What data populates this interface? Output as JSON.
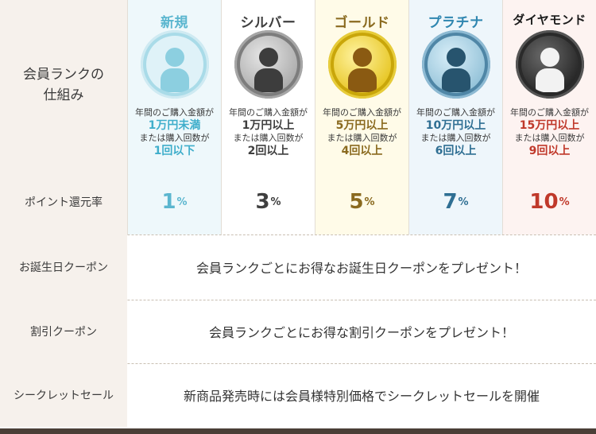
{
  "colors": {
    "label_bg": "#f6f1ec",
    "bottom_bar": "#4a3f37",
    "shinki": "#5bb6cf",
    "silver": "#3f3f3f",
    "gold": "#8a6a1f",
    "platinum": "#2f6f93",
    "diamond": "#c0392b"
  },
  "labels": {
    "rank_system": "会員ランクの\n仕組み",
    "point_rate": "ポイント還元率",
    "birthday_coupon": "お誕生日クーポン",
    "discount_coupon": "割引クーポン",
    "secret_sale": "シークレットセール"
  },
  "ranks": [
    {
      "name": "新規",
      "line1": "年間のご購入金額が",
      "amount": "1万円未満",
      "line2": "または購入回数が",
      "count": "1回以下",
      "rate": "1",
      "unit": "%",
      "icon": "person-icon"
    },
    {
      "name": "シルバー",
      "line1": "年間のご購入金額が",
      "amount": "1万円以上",
      "line2": "または購入回数が",
      "count": "2回以上",
      "rate": "3",
      "unit": "%",
      "icon": "person-icon"
    },
    {
      "name": "ゴールド",
      "line1": "年間のご購入金額が",
      "amount": "5万円以上",
      "line2": "または購入回数が",
      "count": "4回以上",
      "rate": "5",
      "unit": "%",
      "icon": "person-icon"
    },
    {
      "name": "プラチナ",
      "line1": "年間のご購入金額が",
      "amount": "10万円以上",
      "line2": "または購入回数が",
      "count": "6回以上",
      "rate": "7",
      "unit": "%",
      "icon": "person-icon"
    },
    {
      "name": "ダイヤモンド",
      "line1": "年間のご購入金額が",
      "amount": "15万円以上",
      "line2": "または購入回数が",
      "count": "9回以上",
      "rate": "10",
      "unit": "%",
      "icon": "person-icon"
    }
  ],
  "benefits": {
    "birthday": "会員ランクごとにお得なお誕生日クーポンをプレゼント！",
    "discount": "会員ランクごとにお得な割引クーポンをプレゼント！",
    "secret": "新商品発売時には会員様特別価格でシークレットセールを開催"
  }
}
